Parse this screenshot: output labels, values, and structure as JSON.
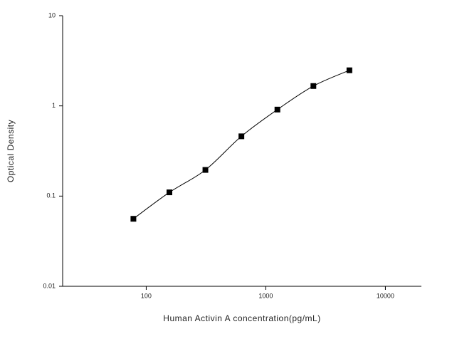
{
  "chart_data": {
    "type": "scatter",
    "x_label": "Human Activin A concentration(pg/mL)",
    "y_label": "Optical Density",
    "x_scale": "log",
    "y_scale": "log",
    "xlim": [
      20,
      20000
    ],
    "ylim": [
      0.01,
      10
    ],
    "xticks": [
      100,
      1000,
      10000
    ],
    "yticks": [
      0.01,
      0.1,
      1,
      10
    ],
    "curve": "smooth",
    "series": [
      {
        "color": "#000000",
        "x": [
          78.125,
          156.25,
          312.5,
          625,
          1250,
          2500,
          5000
        ],
        "values": [
          0.056,
          0.11,
          0.195,
          0.46,
          0.91,
          1.66,
          2.48
        ]
      }
    ]
  }
}
